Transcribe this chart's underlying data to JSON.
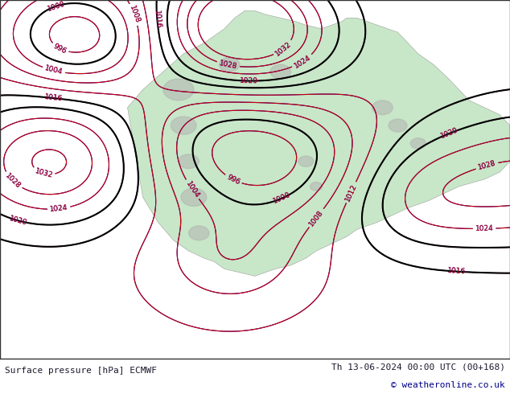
{
  "title_left": "Surface pressure [hPa] ECMWF",
  "title_right": "Th 13-06-2024 00:00 UTC (00+168)",
  "copyright": "© weatheronline.co.uk",
  "bg_color": "#ffffff",
  "map_bg_color": "#f0f0f0",
  "land_color": "#c8e6c8",
  "ocean_color": "#d0e8f0",
  "text_color_left": "#1a1a2e",
  "text_color_right": "#1a1a2e",
  "copyright_color": "#00008b",
  "figsize": [
    6.34,
    4.9
  ],
  "dpi": 100,
  "bottom_bar_height": 0.08,
  "label_fontsize": 8,
  "copyright_fontsize": 8
}
